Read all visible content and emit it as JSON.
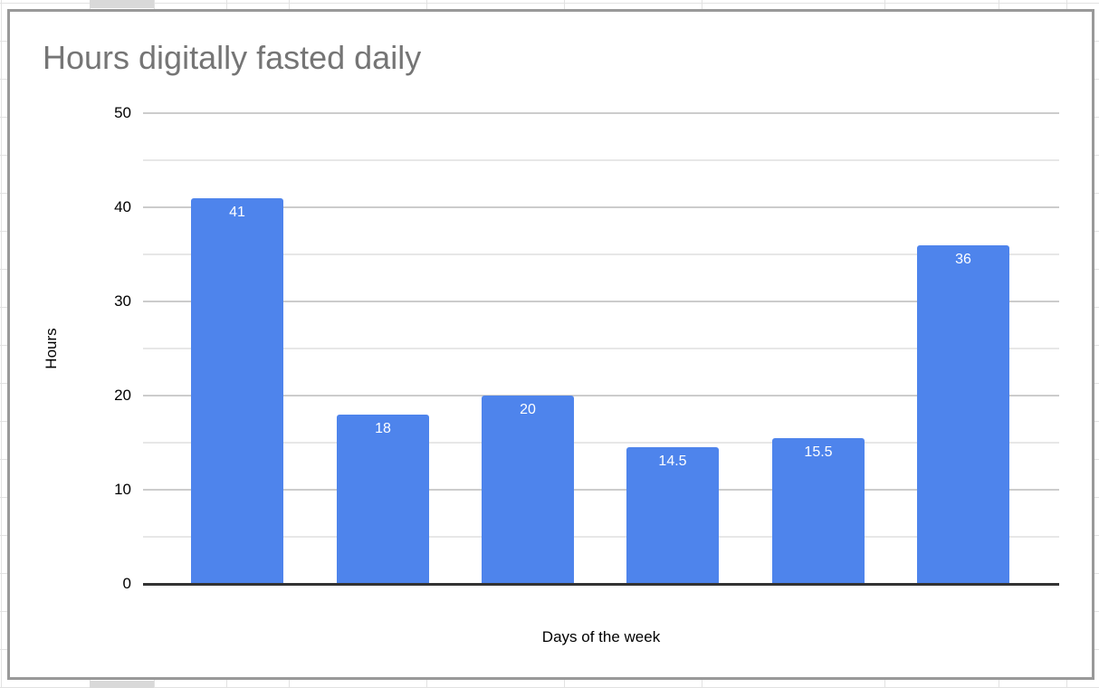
{
  "chart_data": {
    "type": "bar",
    "title": "Hours digitally fasted daily",
    "xlabel": "Days of the week",
    "ylabel": "Hours",
    "categories": [
      "",
      "",
      "",
      "",
      "",
      ""
    ],
    "values": [
      41,
      18,
      20,
      14.5,
      15.5,
      36
    ],
    "value_labels": [
      "41",
      "18",
      "20",
      "14.5",
      "15.5",
      "36"
    ],
    "yticks": [
      0,
      10,
      20,
      30,
      40,
      50
    ],
    "ylim": [
      0,
      50
    ],
    "minor_tick_step": 5,
    "grid": true,
    "legend": "none",
    "colors": {
      "bar": "#4e84ec",
      "value_label": "#ffffff",
      "title": "#757575",
      "axis_text": "#000000",
      "major_gridline": "#cccccc",
      "minor_gridline": "#e7e7e7",
      "axis_baseline": "#333333",
      "card_border": "#999999",
      "background_gridline": "#e2e2e2",
      "background_highlight_cell": "#d9d9d9"
    }
  }
}
